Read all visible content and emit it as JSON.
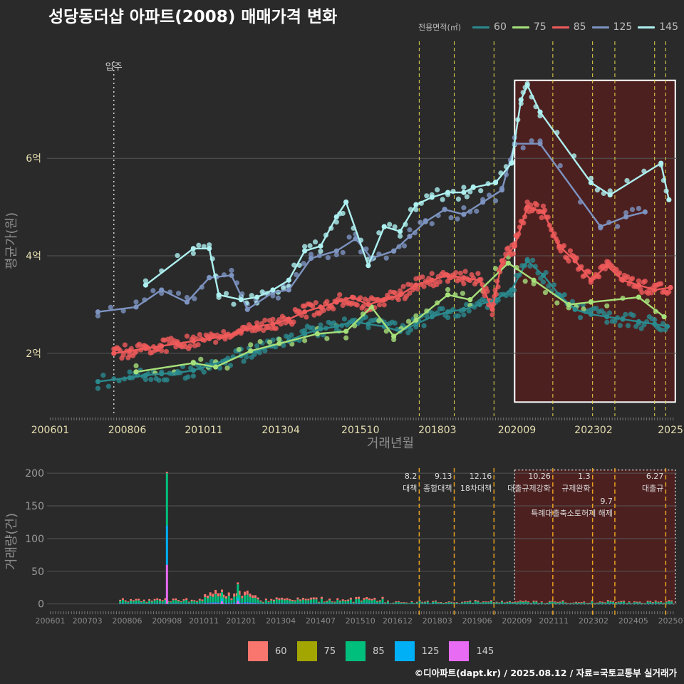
{
  "title": "성당동더샵 아파트(2008) 매매가격 변화",
  "legend_top": {
    "title": "전용면적(㎡)",
    "items": [
      {
        "label": "60",
        "color": "#2b8a8e"
      },
      {
        "label": "75",
        "color": "#a6e07a"
      },
      {
        "label": "85",
        "color": "#ef5a5a"
      },
      {
        "label": "125",
        "color": "#7d93c0"
      },
      {
        "label": "145",
        "color": "#aef0f0"
      }
    ]
  },
  "legend_bottom": {
    "items": [
      {
        "label": "60",
        "color": "#f8766d"
      },
      {
        "label": "75",
        "color": "#a3a500"
      },
      {
        "label": "85",
        "color": "#00bf7d"
      },
      {
        "label": "125",
        "color": "#00b0f6"
      },
      {
        "label": "145",
        "color": "#e76bf3"
      }
    ]
  },
  "credit": "©디아파트(dapt.kr) / 2025.08.12 / 자료=국토교통부 실거래가",
  "chart_data": [
    {
      "type": "line",
      "name": "price",
      "title": "성당동더샵 아파트(2008) 매매가격 변화",
      "xlabel": "거래년월",
      "ylabel": "평균가(원)",
      "xlim": [
        2005.9,
        2025.7
      ],
      "ylim": [
        0.8,
        8.4
      ],
      "x_ticks": [
        2006.0,
        2008.42,
        2010.83,
        2013.25,
        2015.75,
        2018.17,
        2020.67,
        2023.08,
        2025.5
      ],
      "x_tick_labels": [
        "200601",
        "200806",
        "201011",
        "201304",
        "201510",
        "201803",
        "202009",
        "202302",
        "2025"
      ],
      "y_ticks": [
        2,
        4,
        6
      ],
      "y_tick_labels": [
        "2억",
        "4억",
        "6억"
      ],
      "move_in": {
        "x": 2008.0,
        "label": "입주"
      },
      "event_lines": [
        2017.6,
        2018.7,
        2019.95,
        2021.8,
        2023.05,
        2023.75,
        2025.0,
        2025.35
      ],
      "highlight_region": {
        "x0": 2020.6,
        "x1": 2025.65,
        "y0": 1.0,
        "y1": 7.6
      },
      "series": [
        {
          "name": "60",
          "x": [
            2007.5,
            2008.5,
            2009.0,
            2009.5,
            2010.0,
            2010.5,
            2011.0,
            2011.5,
            2012.0,
            2012.5,
            2013.0,
            2013.5,
            2014.0,
            2014.5,
            2015.0,
            2015.5,
            2016.0,
            2016.5,
            2017.0,
            2017.5,
            2018.0,
            2018.5,
            2019.0,
            2019.5,
            2020.0,
            2020.5,
            2021.0,
            2021.5,
            2022.0,
            2022.5,
            2023.0,
            2023.5,
            2024.0,
            2024.5,
            2025.0,
            2025.4
          ],
          "y": [
            1.42,
            1.5,
            1.55,
            1.58,
            1.6,
            1.65,
            1.75,
            1.85,
            1.95,
            2.05,
            2.15,
            2.25,
            2.4,
            2.5,
            2.55,
            2.65,
            2.6,
            2.55,
            2.45,
            2.6,
            2.75,
            2.85,
            2.9,
            3.0,
            3.1,
            3.3,
            3.9,
            3.6,
            3.2,
            2.9,
            2.8,
            2.75,
            2.7,
            2.65,
            2.6,
            2.55
          ]
        },
        {
          "name": "75",
          "x": [
            2008.7,
            2010.5,
            2011.2,
            2012.3,
            2013.2,
            2014.4,
            2015.3,
            2016.1,
            2016.8,
            2017.5,
            2018.5,
            2019.2,
            2020.4,
            2021.2,
            2022.3,
            2023.0,
            2024.5,
            2025.3
          ],
          "y": [
            1.62,
            1.8,
            1.72,
            2.05,
            2.2,
            2.4,
            2.45,
            2.95,
            2.35,
            2.68,
            3.2,
            3.1,
            3.85,
            3.5,
            3.0,
            3.05,
            3.15,
            2.75
          ]
        },
        {
          "name": "85",
          "x": [
            2008.0,
            2008.5,
            2009.0,
            2009.5,
            2010.0,
            2010.5,
            2011.0,
            2011.5,
            2012.0,
            2012.5,
            2013.0,
            2013.5,
            2014.0,
            2014.5,
            2015.0,
            2015.5,
            2016.0,
            2016.5,
            2017.0,
            2017.5,
            2018.0,
            2018.5,
            2019.0,
            2019.5,
            2019.9,
            2020.2,
            2020.6,
            2021.0,
            2021.5,
            2022.0,
            2022.5,
            2023.0,
            2023.5,
            2024.0,
            2024.5,
            2025.0,
            2025.5
          ],
          "y": [
            2.0,
            2.05,
            2.1,
            2.15,
            2.2,
            2.25,
            2.3,
            2.35,
            2.45,
            2.55,
            2.6,
            2.7,
            2.85,
            2.95,
            3.05,
            3.15,
            3.0,
            3.1,
            3.2,
            3.4,
            3.5,
            3.6,
            3.55,
            3.5,
            2.9,
            3.9,
            4.2,
            5.0,
            4.9,
            4.2,
            3.9,
            3.5,
            3.8,
            3.5,
            3.4,
            3.3,
            3.35
          ]
        },
        {
          "name": "125",
          "x": [
            2007.5,
            2008.7,
            2009.5,
            2010.3,
            2011.0,
            2011.7,
            2012.2,
            2013.0,
            2013.5,
            2014.2,
            2015.0,
            2015.6,
            2016.1,
            2016.8,
            2017.3,
            2017.8,
            2018.4,
            2019.0,
            2019.6,
            2020.2,
            2020.6,
            2021.4,
            2023.3,
            2024.1,
            2024.7
          ],
          "y": [
            2.85,
            2.95,
            3.3,
            3.05,
            3.55,
            3.6,
            2.9,
            3.25,
            3.3,
            3.95,
            4.1,
            4.35,
            3.95,
            4.1,
            4.4,
            4.7,
            4.95,
            4.85,
            5.1,
            5.35,
            6.3,
            6.3,
            4.6,
            4.8,
            4.9
          ]
        },
        {
          "name": "145",
          "x": [
            2009.0,
            2010.5,
            2011.0,
            2011.3,
            2012.0,
            2012.5,
            2013.0,
            2013.5,
            2014.0,
            2014.5,
            2015.0,
            2015.3,
            2016.0,
            2016.5,
            2017.0,
            2017.5,
            2018.0,
            2018.5,
            2019.0,
            2019.3,
            2020.0,
            2020.5,
            2020.8,
            2021.0,
            2021.4,
            2023.0,
            2023.6,
            2025.2,
            2025.45
          ],
          "y": [
            3.4,
            4.15,
            4.15,
            3.2,
            3.1,
            3.15,
            3.3,
            3.5,
            4.1,
            4.2,
            4.8,
            5.1,
            3.8,
            4.6,
            4.5,
            5.05,
            5.2,
            5.3,
            5.3,
            5.4,
            5.5,
            5.9,
            7.2,
            7.5,
            6.95,
            5.5,
            5.25,
            5.9,
            5.15
          ]
        }
      ]
    },
    {
      "type": "bar",
      "name": "volume",
      "ylabel": "거래량(건)",
      "stacked": true,
      "xlim": [
        2005.9,
        2025.7
      ],
      "ylim": [
        -8,
        210
      ],
      "y_ticks": [
        0,
        50,
        100,
        150,
        200
      ],
      "y_tick_labels": [
        "0",
        "50",
        "100",
        "150",
        "200"
      ],
      "x_ticks": [
        2006.0,
        2007.17,
        2008.42,
        2009.67,
        2010.83,
        2012.0,
        2013.25,
        2014.5,
        2015.75,
        2016.92,
        2018.17,
        2019.42,
        2020.67,
        2021.83,
        2023.08,
        2024.33,
        2025.5
      ],
      "x_tick_labels": [
        "200601",
        "200703",
        "200806",
        "200908",
        "201011",
        "201201",
        "201304",
        "201407",
        "201510",
        "201612",
        "201803",
        "201906",
        "202009",
        "202111",
        "202302",
        "202405",
        "20250"
      ],
      "highlight_region": {
        "x0": 2020.6,
        "x1": 2025.65,
        "y0": 0,
        "y1": 205
      },
      "events": [
        {
          "x": 2017.6,
          "date": "8.2",
          "label": "대책"
        },
        {
          "x": 2018.7,
          "date": "9.13",
          "label": "종합대책"
        },
        {
          "x": 2019.95,
          "date": "12.16",
          "label": "18차대책"
        },
        {
          "x": 2021.8,
          "date": "10.26",
          "label": "대출규제강화"
        },
        {
          "x": 2023.05,
          "date": "1.3",
          "label": "규제완화"
        },
        {
          "x": 2023.75,
          "date": "9.7",
          "label": "특례대출축소토허제 해제"
        },
        {
          "x": 2025.35,
          "date": "6.27",
          "label": "대출규"
        }
      ],
      "notable_bars": [
        {
          "x": 2009.67,
          "segments": {
            "60": 2,
            "75": 0,
            "85": 80,
            "125": 60,
            "145": 60
          }
        },
        {
          "x": 2011.9,
          "segments": {
            "60": 3,
            "75": 0,
            "85": 20,
            "125": 5,
            "145": 5
          }
        },
        {
          "x": 2011.4,
          "segments": {
            "60": 4,
            "75": 0,
            "85": 10,
            "125": 4,
            "145": 4
          }
        }
      ]
    }
  ]
}
